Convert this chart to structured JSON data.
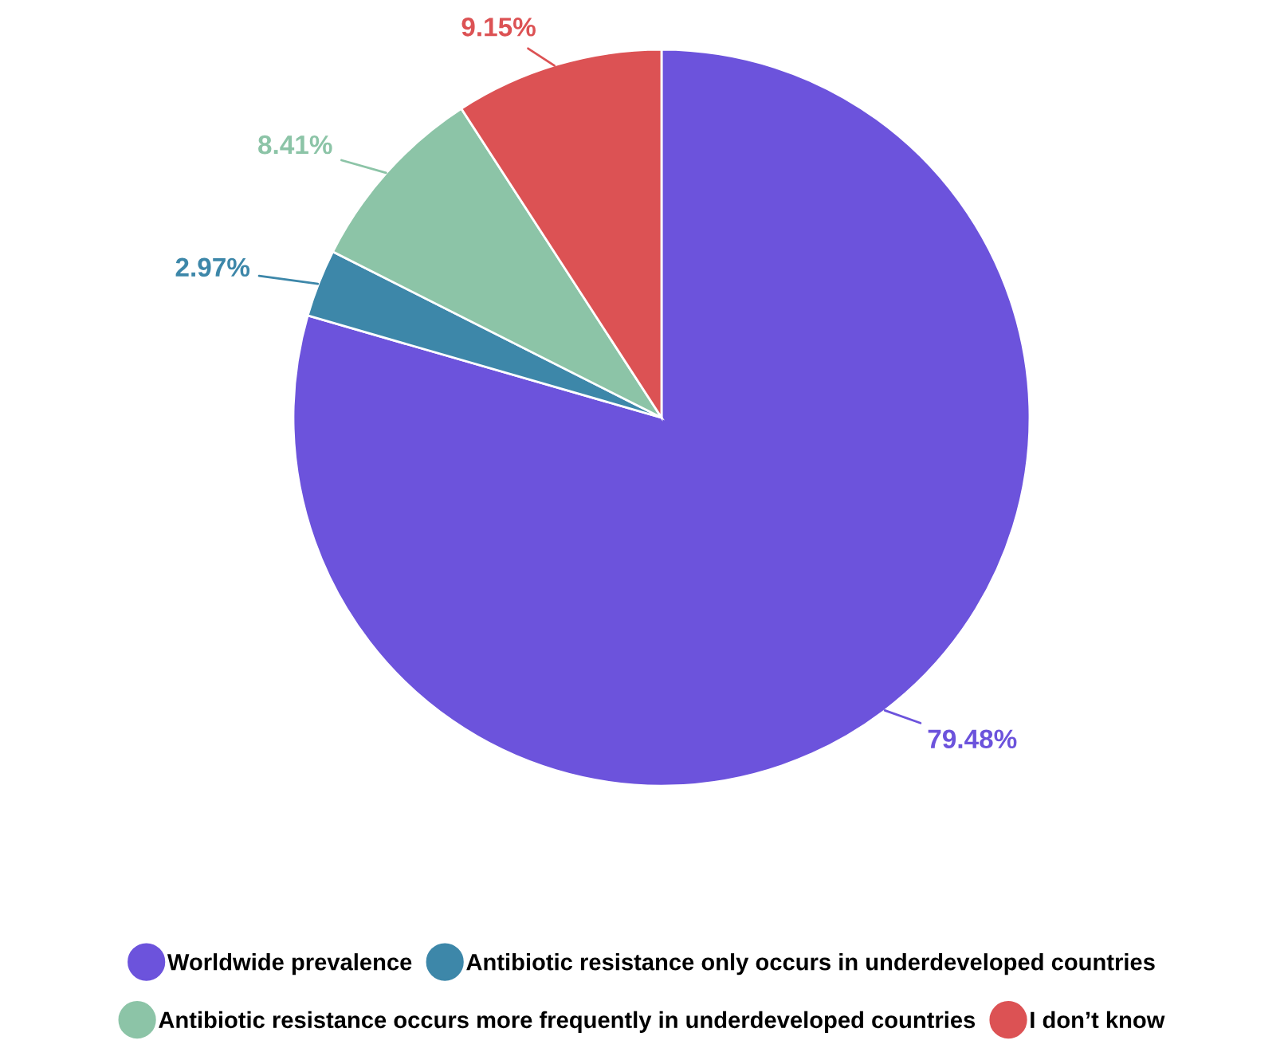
{
  "chart_data": {
    "type": "pie",
    "categories": [
      "Worldwide prevalence",
      "Antibiotic resistance only occurs in underdeveloped countries",
      "Antibiotic resistance occurs more frequently in underdeveloped countries",
      "I don’t know"
    ],
    "values": [
      79.48,
      2.97,
      8.41,
      9.15
    ],
    "colors": [
      "#6c53dc",
      "#3d87a9",
      "#8cc4a7",
      "#dc5254"
    ],
    "value_labels": [
      "79.48%",
      "2.97%",
      "8.41%",
      "9.15%"
    ],
    "legend": "bottom"
  }
}
